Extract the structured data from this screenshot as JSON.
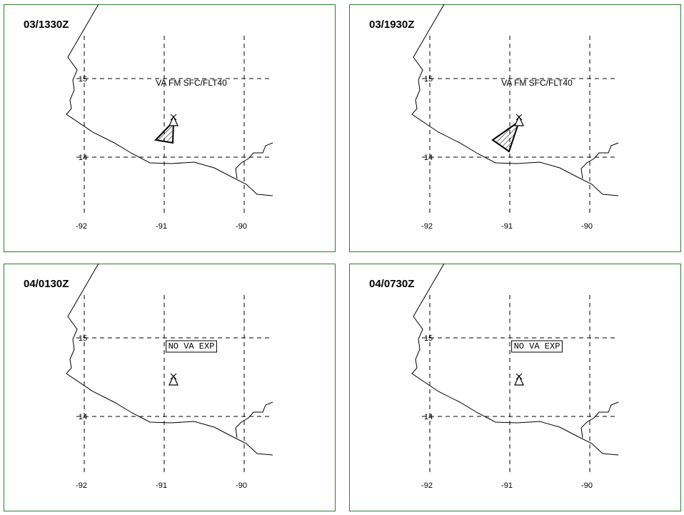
{
  "panels": [
    {
      "time": "03/1330Z",
      "annotation": "VA FM SFC/FLT40",
      "boxed": false,
      "lat_labels": [
        "15",
        "14"
      ],
      "lon_labels": [
        "-92",
        "-91",
        "-90"
      ]
    },
    {
      "time": "03/1930Z",
      "annotation": "VA FM SFC/FLT40",
      "boxed": false,
      "lat_labels": [
        "15",
        "14"
      ],
      "lon_labels": [
        "-92",
        "-91",
        "-90"
      ]
    },
    {
      "time": "04/0130Z",
      "annotation": "NO VA EXP",
      "boxed": true,
      "lat_labels": [
        "15",
        "14"
      ],
      "lon_labels": [
        "-92",
        "-91",
        "-90"
      ]
    },
    {
      "time": "04/0730Z",
      "annotation": "NO VA EXP",
      "boxed": true,
      "lat_labels": [
        "15",
        "14"
      ],
      "lon_labels": [
        "-92",
        "-91",
        "-90"
      ]
    }
  ]
}
